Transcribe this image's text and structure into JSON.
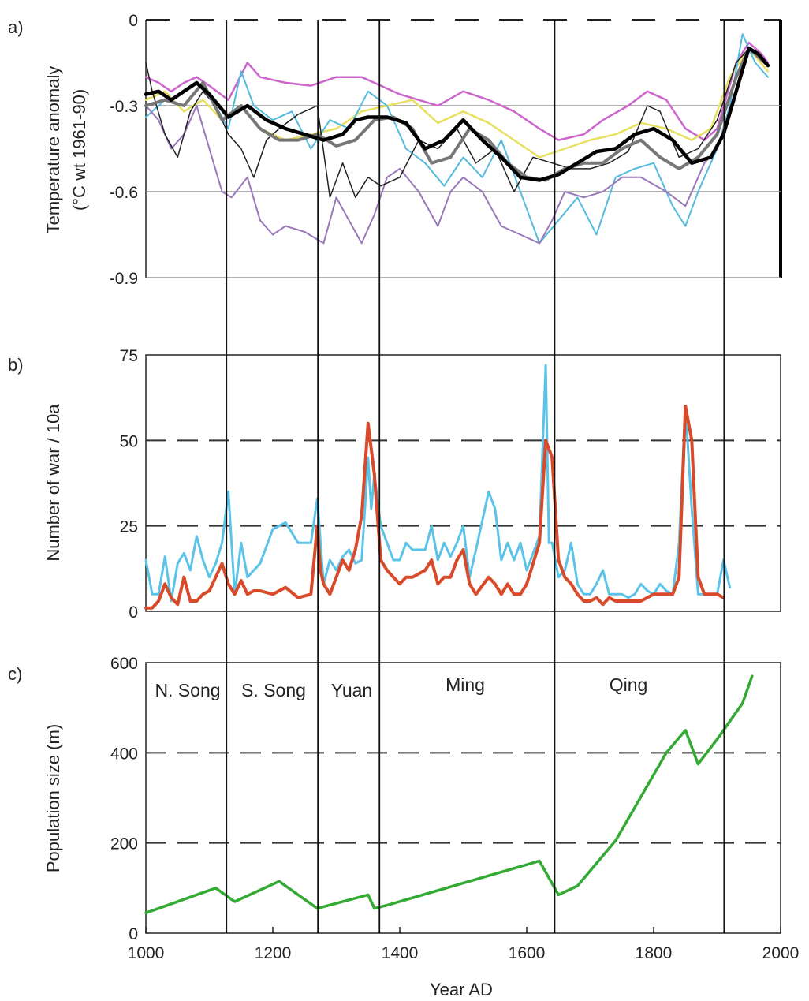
{
  "chart_data": [
    {
      "panel_label": "a)",
      "type": "line",
      "ylabel": "Temperature anomaly",
      "ylabel2": "(°C wt 1961-90)",
      "xlim": [
        1000,
        2000
      ],
      "ylim": [
        -0.9,
        0
      ],
      "yticks": [
        "0",
        "-0.3",
        "-0.6",
        "-0.9"
      ],
      "ytick_values": [
        0,
        -0.3,
        -0.6,
        -0.9
      ],
      "grid_lines": [
        -0.3,
        -0.6,
        -0.9
      ],
      "series": [
        {
          "color": "#cc66cc",
          "width": 2.5,
          "x": [
            1000,
            1020,
            1040,
            1060,
            1080,
            1100,
            1130,
            1160,
            1180,
            1220,
            1260,
            1300,
            1340,
            1370,
            1400,
            1430,
            1460,
            1500,
            1540,
            1580,
            1620,
            1650,
            1690,
            1720,
            1760,
            1790,
            1820,
            1850,
            1880,
            1900,
            1930,
            1950,
            1970,
            1980
          ],
          "y": [
            -0.2,
            -0.22,
            -0.25,
            -0.22,
            -0.2,
            -0.23,
            -0.28,
            -0.15,
            -0.2,
            -0.22,
            -0.23,
            -0.2,
            -0.2,
            -0.23,
            -0.26,
            -0.28,
            -0.3,
            -0.25,
            -0.28,
            -0.32,
            -0.38,
            -0.42,
            -0.4,
            -0.35,
            -0.3,
            -0.25,
            -0.28,
            -0.38,
            -0.42,
            -0.38,
            -0.15,
            -0.08,
            -0.12,
            -0.15
          ]
        },
        {
          "color": "#e8e060",
          "width": 2.5,
          "x": [
            1000,
            1030,
            1060,
            1090,
            1120,
            1150,
            1180,
            1220,
            1260,
            1300,
            1340,
            1380,
            1420,
            1460,
            1500,
            1540,
            1580,
            1620,
            1660,
            1700,
            1740,
            1780,
            1820,
            1860,
            1890,
            1920,
            1950,
            1980
          ],
          "y": [
            -0.28,
            -0.25,
            -0.32,
            -0.28,
            -0.35,
            -0.3,
            -0.38,
            -0.42,
            -0.4,
            -0.38,
            -0.32,
            -0.3,
            -0.28,
            -0.36,
            -0.32,
            -0.36,
            -0.42,
            -0.48,
            -0.45,
            -0.42,
            -0.4,
            -0.36,
            -0.38,
            -0.42,
            -0.38,
            -0.2,
            -0.1,
            -0.18
          ]
        },
        {
          "color": "#55bbdd",
          "width": 2,
          "x": [
            1000,
            1030,
            1060,
            1090,
            1110,
            1130,
            1150,
            1170,
            1200,
            1230,
            1260,
            1290,
            1320,
            1350,
            1380,
            1410,
            1440,
            1470,
            1500,
            1530,
            1560,
            1590,
            1620,
            1650,
            1680,
            1710,
            1740,
            1770,
            1800,
            1830,
            1850,
            1870,
            1900,
            1920,
            1940,
            1960,
            1980
          ],
          "y": [
            -0.34,
            -0.28,
            -0.3,
            -0.22,
            -0.3,
            -0.38,
            -0.18,
            -0.3,
            -0.35,
            -0.32,
            -0.45,
            -0.35,
            -0.38,
            -0.25,
            -0.3,
            -0.45,
            -0.5,
            -0.58,
            -0.48,
            -0.55,
            -0.42,
            -0.6,
            -0.78,
            -0.7,
            -0.62,
            -0.75,
            -0.55,
            -0.52,
            -0.5,
            -0.65,
            -0.72,
            -0.6,
            -0.45,
            -0.3,
            -0.05,
            -0.15,
            -0.2
          ]
        },
        {
          "color": "#9977bb",
          "width": 2,
          "x": [
            1000,
            1020,
            1040,
            1060,
            1080,
            1100,
            1120,
            1135,
            1160,
            1180,
            1200,
            1220,
            1250,
            1280,
            1300,
            1320,
            1340,
            1360,
            1380,
            1400,
            1430,
            1460,
            1480,
            1500,
            1530,
            1560,
            1590,
            1620,
            1640,
            1660,
            1690,
            1720,
            1750,
            1780,
            1820,
            1850,
            1880,
            1900,
            1950,
            1980
          ],
          "y": [
            -0.3,
            -0.35,
            -0.45,
            -0.4,
            -0.3,
            -0.45,
            -0.6,
            -0.62,
            -0.55,
            -0.7,
            -0.75,
            -0.72,
            -0.74,
            -0.78,
            -0.62,
            -0.7,
            -0.78,
            -0.68,
            -0.55,
            -0.52,
            -0.6,
            -0.72,
            -0.6,
            -0.55,
            -0.6,
            -0.72,
            -0.75,
            -0.78,
            -0.7,
            -0.6,
            -0.62,
            -0.6,
            -0.55,
            -0.55,
            -0.6,
            -0.65,
            -0.5,
            -0.45,
            -0.1,
            -0.15
          ]
        },
        {
          "color": "#222222",
          "width": 1.5,
          "x": [
            1000,
            1010,
            1030,
            1050,
            1070,
            1090,
            1110,
            1130,
            1150,
            1170,
            1190,
            1210,
            1240,
            1270,
            1290,
            1310,
            1330,
            1350,
            1370,
            1400,
            1430,
            1460,
            1490,
            1520,
            1550,
            1580,
            1610,
            1640,
            1670,
            1700,
            1730,
            1760,
            1790,
            1810,
            1840,
            1870,
            1900,
            1930,
            1950,
            1980
          ],
          "y": [
            -0.15,
            -0.25,
            -0.4,
            -0.48,
            -0.32,
            -0.25,
            -0.3,
            -0.4,
            -0.45,
            -0.55,
            -0.42,
            -0.38,
            -0.33,
            -0.3,
            -0.62,
            -0.5,
            -0.62,
            -0.55,
            -0.58,
            -0.55,
            -0.42,
            -0.45,
            -0.38,
            -0.5,
            -0.45,
            -0.6,
            -0.48,
            -0.5,
            -0.52,
            -0.52,
            -0.5,
            -0.46,
            -0.3,
            -0.32,
            -0.48,
            -0.45,
            -0.35,
            -0.15,
            -0.1,
            -0.16
          ]
        },
        {
          "color": "#777777",
          "width": 4,
          "x": [
            1000,
            1030,
            1060,
            1090,
            1120,
            1150,
            1180,
            1210,
            1240,
            1270,
            1300,
            1330,
            1360,
            1390,
            1420,
            1450,
            1480,
            1510,
            1540,
            1570,
            1600,
            1630,
            1660,
            1690,
            1720,
            1750,
            1780,
            1810,
            1840,
            1870,
            1900,
            1930,
            1950,
            1980
          ],
          "y": [
            -0.3,
            -0.28,
            -0.3,
            -0.22,
            -0.35,
            -0.3,
            -0.38,
            -0.42,
            -0.42,
            -0.4,
            -0.44,
            -0.42,
            -0.35,
            -0.34,
            -0.38,
            -0.5,
            -0.48,
            -0.38,
            -0.42,
            -0.5,
            -0.55,
            -0.56,
            -0.52,
            -0.5,
            -0.5,
            -0.45,
            -0.42,
            -0.48,
            -0.52,
            -0.48,
            -0.4,
            -0.2,
            -0.1,
            -0.16
          ]
        },
        {
          "color": "#000000",
          "width": 4.5,
          "x": [
            1000,
            1020,
            1040,
            1060,
            1080,
            1100,
            1130,
            1160,
            1190,
            1220,
            1250,
            1280,
            1310,
            1330,
            1350,
            1380,
            1410,
            1440,
            1470,
            1500,
            1530,
            1560,
            1590,
            1620,
            1650,
            1680,
            1710,
            1740,
            1770,
            1800,
            1830,
            1860,
            1890,
            1910,
            1930,
            1950,
            1965,
            1980
          ],
          "y": [
            -0.26,
            -0.25,
            -0.28,
            -0.25,
            -0.22,
            -0.26,
            -0.34,
            -0.3,
            -0.35,
            -0.38,
            -0.4,
            -0.42,
            -0.4,
            -0.35,
            -0.34,
            -0.34,
            -0.36,
            -0.45,
            -0.42,
            -0.35,
            -0.42,
            -0.48,
            -0.55,
            -0.56,
            -0.54,
            -0.5,
            -0.46,
            -0.45,
            -0.4,
            -0.38,
            -0.42,
            -0.5,
            -0.48,
            -0.4,
            -0.25,
            -0.1,
            -0.12,
            -0.16
          ]
        }
      ]
    },
    {
      "panel_label": "b)",
      "type": "line",
      "ylabel": "Number of war / 10a",
      "xlim": [
        1000,
        2000
      ],
      "ylim": [
        0,
        75
      ],
      "yticks": [
        "0",
        "25",
        "50",
        "75"
      ],
      "ytick_values": [
        0,
        25,
        50,
        75
      ],
      "grid_lines": [
        25,
        50
      ],
      "series": [
        {
          "color": "#5cc3e8",
          "width": 3,
          "x": [
            1000,
            1010,
            1020,
            1030,
            1040,
            1050,
            1060,
            1070,
            1080,
            1090,
            1100,
            1110,
            1120,
            1130,
            1140,
            1150,
            1160,
            1170,
            1180,
            1200,
            1220,
            1240,
            1260,
            1270,
            1280,
            1290,
            1300,
            1310,
            1320,
            1330,
            1340,
            1350,
            1355,
            1360,
            1370,
            1380,
            1390,
            1400,
            1410,
            1420,
            1440,
            1450,
            1460,
            1470,
            1480,
            1490,
            1500,
            1510,
            1520,
            1540,
            1550,
            1560,
            1570,
            1580,
            1590,
            1600,
            1620,
            1630,
            1635,
            1640,
            1650,
            1660,
            1670,
            1680,
            1690,
            1700,
            1710,
            1720,
            1730,
            1740,
            1750,
            1760,
            1770,
            1780,
            1790,
            1800,
            1810,
            1820,
            1830,
            1840,
            1850,
            1860,
            1870,
            1880,
            1890,
            1900,
            1910,
            1920
          ],
          "y": [
            15,
            5,
            5,
            16,
            3,
            14,
            17,
            12,
            22,
            15,
            10,
            14,
            20,
            35,
            5,
            20,
            10,
            12,
            14,
            24,
            26,
            20,
            20,
            33,
            8,
            15,
            12,
            16,
            18,
            14,
            15,
            45,
            30,
            40,
            25,
            20,
            15,
            15,
            20,
            18,
            18,
            25,
            15,
            20,
            16,
            20,
            25,
            10,
            18,
            35,
            30,
            15,
            20,
            15,
            20,
            12,
            22,
            72,
            20,
            20,
            10,
            12,
            20,
            8,
            5,
            5,
            8,
            12,
            5,
            5,
            5,
            4,
            5,
            8,
            6,
            5,
            8,
            6,
            5,
            20,
            60,
            30,
            5,
            5,
            5,
            5,
            15,
            7
          ]
        },
        {
          "color": "#d94a2a",
          "width": 4,
          "x": [
            1000,
            1010,
            1020,
            1030,
            1040,
            1050,
            1060,
            1070,
            1080,
            1090,
            1100,
            1110,
            1120,
            1130,
            1140,
            1150,
            1160,
            1170,
            1180,
            1200,
            1220,
            1240,
            1260,
            1270,
            1275,
            1280,
            1290,
            1300,
            1310,
            1320,
            1330,
            1340,
            1350,
            1360,
            1370,
            1380,
            1390,
            1400,
            1410,
            1420,
            1440,
            1450,
            1460,
            1470,
            1480,
            1490,
            1500,
            1510,
            1520,
            1540,
            1550,
            1560,
            1570,
            1580,
            1590,
            1600,
            1620,
            1630,
            1640,
            1650,
            1660,
            1670,
            1680,
            1690,
            1700,
            1710,
            1720,
            1730,
            1740,
            1760,
            1780,
            1800,
            1820,
            1830,
            1840,
            1850,
            1860,
            1870,
            1880,
            1890,
            1900,
            1910
          ],
          "y": [
            1,
            1,
            3,
            8,
            4,
            2,
            10,
            3,
            3,
            5,
            6,
            10,
            14,
            8,
            5,
            9,
            5,
            6,
            6,
            5,
            7,
            4,
            5,
            25,
            12,
            8,
            5,
            10,
            15,
            12,
            18,
            28,
            55,
            40,
            15,
            12,
            10,
            8,
            10,
            10,
            12,
            15,
            8,
            10,
            10,
            15,
            18,
            8,
            5,
            10,
            8,
            5,
            8,
            5,
            5,
            8,
            20,
            50,
            45,
            15,
            10,
            8,
            5,
            3,
            3,
            4,
            2,
            4,
            3,
            3,
            3,
            5,
            5,
            5,
            10,
            60,
            50,
            10,
            5,
            5,
            5,
            4
          ]
        }
      ]
    },
    {
      "panel_label": "c)",
      "type": "line",
      "ylabel": "Population size (m)",
      "xlabel": "Year AD",
      "xlim": [
        1000,
        2000
      ],
      "ylim": [
        0,
        600
      ],
      "yticks": [
        "0",
        "200",
        "400",
        "600"
      ],
      "ytick_values": [
        0,
        200,
        400,
        600
      ],
      "xticks": [
        "1000",
        "1200",
        "1400",
        "1600",
        "1800",
        "2000"
      ],
      "xtick_values": [
        1000,
        1200,
        1400,
        1600,
        1800,
        2000
      ],
      "grid_lines": [
        200,
        400
      ],
      "series": [
        {
          "color": "#33aa33",
          "width": 3.5,
          "x": [
            1000,
            1110,
            1140,
            1210,
            1270,
            1350,
            1360,
            1380,
            1620,
            1650,
            1680,
            1740,
            1820,
            1850,
            1870,
            1900,
            1940,
            1955
          ],
          "y": [
            45,
            100,
            70,
            115,
            55,
            85,
            55,
            62,
            160,
            85,
            105,
            205,
            400,
            450,
            375,
            430,
            510,
            570
          ]
        }
      ]
    }
  ],
  "dynasties": [
    {
      "label": "N. Song"
    },
    {
      "label": "S. Song"
    },
    {
      "label": "Yuan"
    },
    {
      "label": "Ming"
    },
    {
      "label": "Qing"
    }
  ],
  "dynasty_boundaries": [
    1127,
    1271,
    1368,
    1644,
    1911
  ]
}
